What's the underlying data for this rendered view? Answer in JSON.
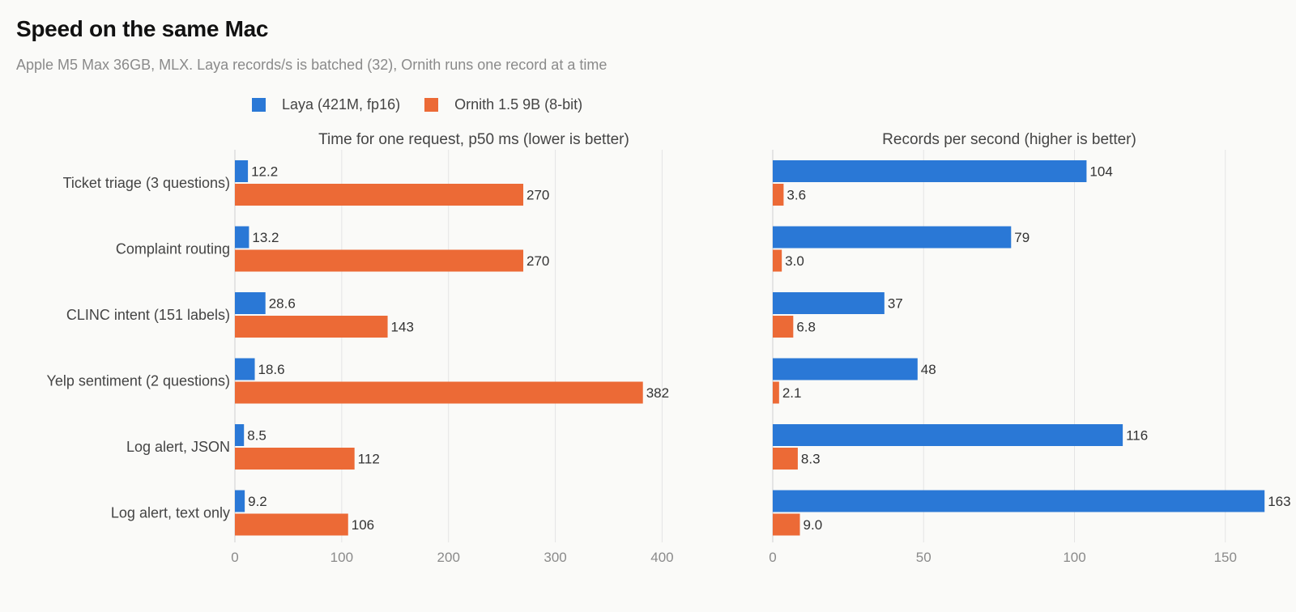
{
  "title": "Speed on the same Mac",
  "subtitle": "Apple M5 Max 36GB, MLX. Laya records/s is batched (32), Ornith runs one record at a time",
  "legend": [
    {
      "label": "Laya (421M, fp16)",
      "color": "#2a78d6"
    },
    {
      "label": "Ornith 1.5 9B (8-bit)",
      "color": "#ec6a36"
    }
  ],
  "chart_data": [
    {
      "type": "bar",
      "orientation": "horizontal",
      "title": "Time for one request, p50 ms (lower is better)",
      "categories": [
        "Ticket triage (3 questions)",
        "Complaint routing",
        "CLINC intent (151 labels)",
        "Yelp sentiment (2 questions)",
        "Log alert, JSON",
        "Log alert, text only"
      ],
      "series": [
        {
          "name": "Laya (421M, fp16)",
          "color": "#2a78d6",
          "values": [
            12.2,
            13.2,
            28.6,
            18.6,
            8.5,
            9.2
          ],
          "labels": [
            "12.2",
            "13.2",
            "28.6",
            "18.6",
            "8.5",
            "9.2"
          ]
        },
        {
          "name": "Ornith 1.5 9B (8-bit)",
          "color": "#ec6a36",
          "values": [
            270,
            270,
            143,
            382,
            112,
            106
          ],
          "labels": [
            "270",
            "270",
            "143",
            "382",
            "112",
            "106"
          ]
        }
      ],
      "xlim": [
        0,
        430
      ],
      "xticks": [
        0,
        100,
        200,
        300,
        400
      ],
      "grid": true
    },
    {
      "type": "bar",
      "orientation": "horizontal",
      "title": "Records per second (higher is better)",
      "categories": [
        "Ticket triage (3 questions)",
        "Complaint routing",
        "CLINC intent (151 labels)",
        "Yelp sentiment (2 questions)",
        "Log alert, JSON",
        "Log alert, text only"
      ],
      "series": [
        {
          "name": "Laya (421M, fp16)",
          "color": "#2a78d6",
          "values": [
            104,
            79,
            37,
            48,
            116,
            163
          ],
          "labels": [
            "104",
            "79",
            "37",
            "48",
            "116",
            "163"
          ]
        },
        {
          "name": "Ornith 1.5 9B (8-bit)",
          "color": "#ec6a36",
          "values": [
            3.6,
            3.0,
            6.8,
            2.1,
            8.3,
            9.0
          ],
          "labels": [
            "3.6",
            "3.0",
            "6.8",
            "2.1",
            "8.3",
            "9.0"
          ]
        }
      ],
      "xlim": [
        0,
        171
      ],
      "xticks": [
        0,
        50,
        100,
        150
      ],
      "grid": true
    }
  ]
}
